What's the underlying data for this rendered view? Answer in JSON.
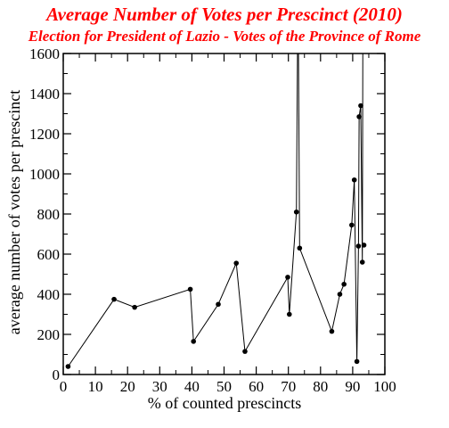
{
  "chart_data": {
    "type": "line",
    "title": "Average Number of Votes per Prescinct  (2010)",
    "subtitle": "Election for President of Lazio - Votes of the Province of Rome",
    "xlabel": "% of  counted prescincts",
    "ylabel": "average number of votes per prescinct",
    "xlim": [
      0,
      100
    ],
    "ylim": [
      0,
      1600
    ],
    "xticks": [
      0,
      10,
      20,
      30,
      40,
      50,
      60,
      70,
      80,
      90,
      100
    ],
    "yticks": [
      0,
      200,
      400,
      600,
      800,
      1000,
      1200,
      1400,
      1600
    ],
    "grid": false,
    "series": [
      {
        "marker": "circle",
        "color": "#000000",
        "x": [
          1.5,
          15.8,
          22.2,
          39.5,
          40.5,
          48.2,
          53.8,
          56.5,
          69.8,
          70.3,
          72.5,
          73.0,
          73.5,
          83.5,
          86.0,
          87.3,
          89.7,
          90.5,
          91.3,
          91.8,
          92.0,
          92.5,
          93.0,
          93.2
        ],
        "y": [
          40,
          375,
          335,
          425,
          165,
          350,
          555,
          115,
          485,
          300,
          810,
          2000,
          630,
          215,
          400,
          450,
          745,
          970,
          65,
          640,
          1285,
          1340,
          560,
          2000
        ]
      }
    ],
    "markers": [
      [
        1.5,
        40
      ],
      [
        15.8,
        375
      ],
      [
        22.2,
        335
      ],
      [
        39.5,
        425
      ],
      [
        40.5,
        165
      ],
      [
        48.2,
        350
      ],
      [
        53.8,
        555
      ],
      [
        56.5,
        115
      ],
      [
        69.8,
        485
      ],
      [
        70.3,
        300
      ],
      [
        72.5,
        810
      ],
      [
        73.5,
        630
      ],
      [
        83.5,
        215
      ],
      [
        86.0,
        400
      ],
      [
        87.3,
        450
      ],
      [
        89.7,
        745
      ],
      [
        90.5,
        970
      ],
      [
        91.3,
        65
      ],
      [
        91.8,
        640
      ],
      [
        92.0,
        1285
      ],
      [
        92.5,
        1340
      ],
      [
        93.0,
        560
      ],
      [
        93.5,
        645
      ]
    ]
  }
}
